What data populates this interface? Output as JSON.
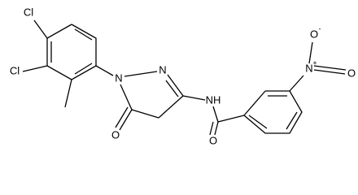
{
  "atoms": [
    {
      "label": "Cl"
    },
    {
      "label": "Cl"
    },
    {
      "label": "N"
    },
    {
      "label": "N"
    },
    {
      "label": "O"
    },
    {
      "label": "NH"
    },
    {
      "label": "O"
    },
    {
      "label": "N",
      "charge": "+"
    },
    {
      "label": "O",
      "charge": "-"
    },
    {
      "label": "O"
    }
  ]
}
